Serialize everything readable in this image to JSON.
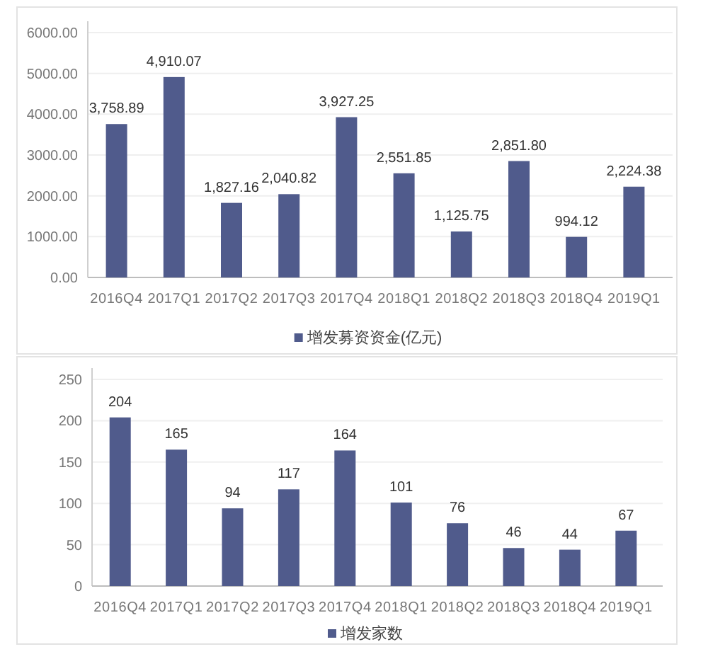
{
  "chart_data": [
    {
      "type": "bar",
      "categories": [
        "2016Q4",
        "2017Q1",
        "2017Q2",
        "2017Q3",
        "2017Q4",
        "2018Q1",
        "2018Q2",
        "2018Q3",
        "2018Q4",
        "2019Q1"
      ],
      "series": [
        {
          "name": "增发募资资金(亿元)",
          "color": "#505b8c",
          "values": [
            3758.89,
            4910.07,
            1827.16,
            2040.82,
            3927.25,
            2551.85,
            1125.75,
            2851.8,
            994.12,
            2224.38
          ],
          "value_labels": [
            "3,758.89",
            "4,910.07",
            "1,827.16",
            "2,040.82",
            "3,927.25",
            "2,551.85",
            "1,125.75",
            "2,851.80",
            "994.12",
            "2,224.38"
          ]
        }
      ],
      "ylim": [
        0,
        6000
      ],
      "yticks": [
        {
          "value": 0,
          "label": "0.00"
        },
        {
          "value": 1000,
          "label": "1000.00"
        },
        {
          "value": 2000,
          "label": "2000.00"
        },
        {
          "value": 3000,
          "label": "3000.00"
        },
        {
          "value": 4000,
          "label": "4000.00"
        },
        {
          "value": 5000,
          "label": "5000.00"
        },
        {
          "value": 6000,
          "label": "6000.00"
        }
      ],
      "grid": "y",
      "legend": "bottom"
    },
    {
      "type": "bar",
      "categories": [
        "2016Q4",
        "2017Q1",
        "2017Q2",
        "2017Q3",
        "2017Q4",
        "2018Q1",
        "2018Q2",
        "2018Q3",
        "2018Q4",
        "2019Q1"
      ],
      "series": [
        {
          "name": "增发家数",
          "color": "#505b8c",
          "values": [
            204,
            165,
            94,
            117,
            164,
            101,
            76,
            46,
            44,
            67
          ]
        }
      ],
      "ylim": [
        0,
        250
      ],
      "yticks": [
        0,
        50,
        100,
        150,
        200,
        250
      ],
      "data_labels": true,
      "grid": "y",
      "legend": "bottom"
    }
  ]
}
